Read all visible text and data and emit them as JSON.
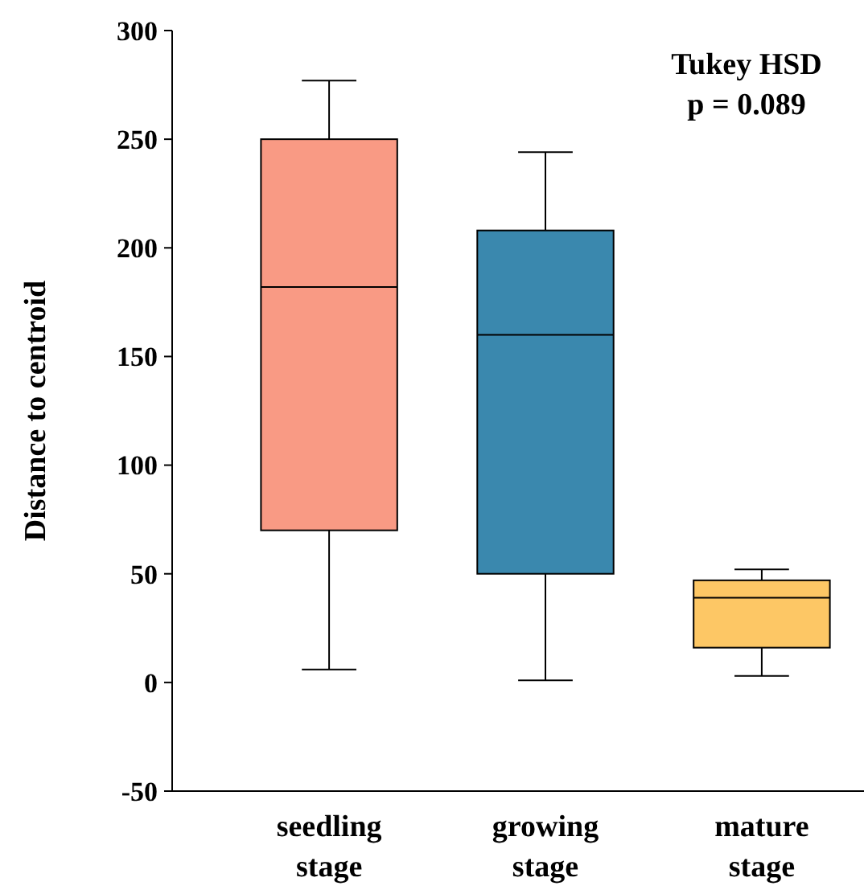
{
  "chart_data": {
    "type": "box",
    "ylabel": "Distance to centroid",
    "categories": [
      "seedling stage",
      "growing stage",
      "mature stage"
    ],
    "colors": [
      "#f99a84",
      "#3a88ae",
      "#fdc765"
    ],
    "boxes": [
      {
        "low": 6,
        "q1": 70,
        "median": 182,
        "q3": 250,
        "high": 277
      },
      {
        "low": 1,
        "q1": 50,
        "median": 160,
        "q3": 208,
        "high": 244
      },
      {
        "low": 3,
        "q1": 16,
        "median": 39,
        "q3": 47,
        "high": 52
      }
    ],
    "ylim": [
      -50,
      300
    ],
    "yticks": [
      -50,
      0,
      50,
      100,
      150,
      200,
      250,
      300
    ],
    "grid": false,
    "annotations": [
      "Tukey HSD",
      "p = 0.089"
    ]
  }
}
